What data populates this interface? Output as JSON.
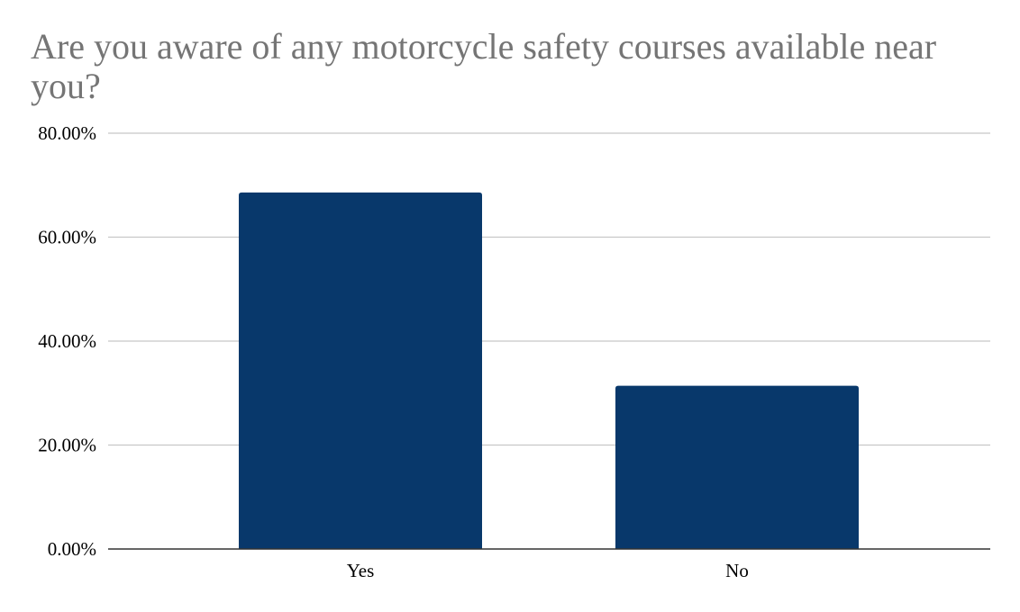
{
  "chart_data": {
    "type": "bar",
    "title": "Are you aware of any motorcycle safety courses available near you?",
    "xlabel": "",
    "ylabel": "",
    "categories": [
      "Yes",
      "No"
    ],
    "values": [
      68.6,
      31.4
    ],
    "ylim": [
      0,
      80
    ],
    "yticks": [
      "0.00%",
      "20.00%",
      "40.00%",
      "60.00%",
      "80.00%"
    ],
    "ytick_values": [
      0,
      20,
      40,
      60,
      80
    ],
    "grid": true,
    "legend": "none",
    "bar_color": "#08386b",
    "gridline_color": "#c8c8c8",
    "axis_color": "#333333"
  }
}
